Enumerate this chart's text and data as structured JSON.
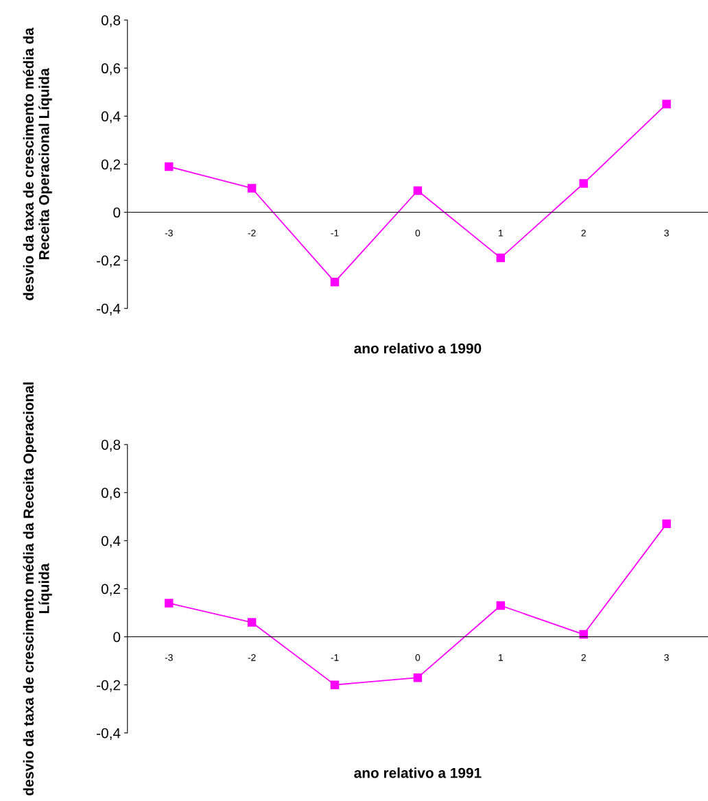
{
  "chart_data": [
    {
      "type": "line",
      "xlabel": "ano relativo a 1990",
      "ylabel": "desvio da taxa de crescimento média da Receita Operacional Líquida",
      "categories": [
        "-3",
        "-2",
        "-1",
        "0",
        "1",
        "2",
        "3"
      ],
      "series": [
        {
          "color": "#ff00ff",
          "values": [
            0.19,
            0.1,
            -0.29,
            0.09,
            -0.19,
            0.12,
            0.45
          ]
        }
      ],
      "ylim": [
        -0.4,
        0.8
      ],
      "yticks": [
        {
          "value": -0.4,
          "label": "-0,4"
        },
        {
          "value": -0.2,
          "label": "-0,2"
        },
        {
          "value": 0,
          "label": "0"
        },
        {
          "value": 0.2,
          "label": "0,2"
        },
        {
          "value": 0.4,
          "label": "0,4"
        },
        {
          "value": 0.6,
          "label": "0,6"
        },
        {
          "value": 0.8,
          "label": "0,8"
        }
      ],
      "marker": "square",
      "line_style": "solid",
      "grid": false,
      "legend": false
    },
    {
      "type": "line",
      "xlabel": "ano relativo a 1991",
      "ylabel": "desvio da taxa de crescimento média da Receita Operacional Líquida",
      "categories": [
        "-3",
        "-2",
        "-1",
        "0",
        "1",
        "2",
        "3"
      ],
      "series": [
        {
          "color": "#ff00ff",
          "values": [
            0.14,
            0.06,
            -0.2,
            -0.17,
            0.13,
            0.01,
            0.47
          ]
        }
      ],
      "ylim": [
        -0.4,
        0.8
      ],
      "yticks": [
        {
          "value": -0.4,
          "label": "-0,4"
        },
        {
          "value": -0.2,
          "label": "-0,2"
        },
        {
          "value": 0,
          "label": "0"
        },
        {
          "value": 0.2,
          "label": "0,2"
        },
        {
          "value": 0.4,
          "label": "0,4"
        },
        {
          "value": 0.6,
          "label": "0,6"
        },
        {
          "value": 0.8,
          "label": "0,8"
        }
      ],
      "marker": "square",
      "line_style": "solid",
      "grid": false,
      "legend": false
    }
  ]
}
